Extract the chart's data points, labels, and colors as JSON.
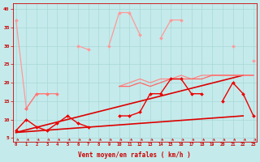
{
  "bg_color": "#c5eaeb",
  "grid_color": "#a8d8d8",
  "xlabel": "Vent moyen/en rafales ( km/h )",
  "x": [
    0,
    1,
    2,
    3,
    4,
    5,
    6,
    7,
    8,
    9,
    10,
    11,
    12,
    13,
    14,
    15,
    16,
    17,
    18,
    19,
    20,
    21,
    22,
    23
  ],
  "xlim": [
    -0.3,
    23.3
  ],
  "ylim": [
    4.0,
    41.5
  ],
  "yticks": [
    5,
    10,
    15,
    20,
    25,
    30,
    35,
    40
  ],
  "series": [
    {
      "y": [
        37,
        13,
        null,
        null,
        null,
        null,
        null,
        null,
        null,
        null,
        null,
        null,
        null,
        null,
        null,
        null,
        null,
        null,
        null,
        null,
        null,
        null,
        null,
        null
      ],
      "color": "#ff9999",
      "lw": 0.9,
      "marker": "D",
      "ms": 2.0
    },
    {
      "y": [
        null,
        13,
        17,
        17,
        null,
        null,
        30,
        29,
        null,
        30,
        39,
        39,
        33,
        null,
        32,
        37,
        37,
        null,
        null,
        null,
        null,
        30,
        null,
        26
      ],
      "color": "#ff9999",
      "lw": 0.9,
      "marker": "D",
      "ms": 2.0
    },
    {
      "y": [
        null,
        13,
        17,
        17,
        17,
        null,
        null,
        null,
        null,
        null,
        null,
        null,
        null,
        null,
        null,
        null,
        null,
        null,
        null,
        null,
        null,
        null,
        null,
        null
      ],
      "color": "#ff7777",
      "lw": 0.9,
      "marker": "D",
      "ms": 2.0
    },
    {
      "y": [
        null,
        null,
        null,
        null,
        null,
        null,
        null,
        null,
        null,
        null,
        19,
        20,
        21,
        20,
        21,
        21,
        22,
        21,
        22,
        22,
        22,
        22,
        22,
        22
      ],
      "color": "#ff8888",
      "lw": 0.9,
      "marker": null,
      "ms": 0
    },
    {
      "y": [
        null,
        null,
        null,
        null,
        null,
        null,
        null,
        null,
        null,
        null,
        19,
        19,
        20,
        19,
        20,
        21,
        21,
        21,
        21,
        22,
        22,
        22,
        22,
        22
      ],
      "color": "#ff6666",
      "lw": 0.9,
      "marker": null,
      "ms": 0
    },
    {
      "y": [
        7,
        10,
        8,
        7,
        9,
        11,
        9,
        8,
        null,
        null,
        11,
        11,
        12,
        17,
        17,
        21,
        21,
        17,
        17,
        null,
        15,
        20,
        17,
        11
      ],
      "color": "#ee0000",
      "lw": 1.0,
      "marker": "D",
      "ms": 2.0
    }
  ],
  "trend_lines": [
    {
      "x0": 0,
      "y0": 6.5,
      "x1": 22,
      "y1": 11,
      "color": "#dd0000",
      "lw": 1.2
    },
    {
      "x0": 0,
      "y0": 6.5,
      "x1": 22,
      "y1": 22,
      "color": "#dd0000",
      "lw": 1.2
    }
  ]
}
